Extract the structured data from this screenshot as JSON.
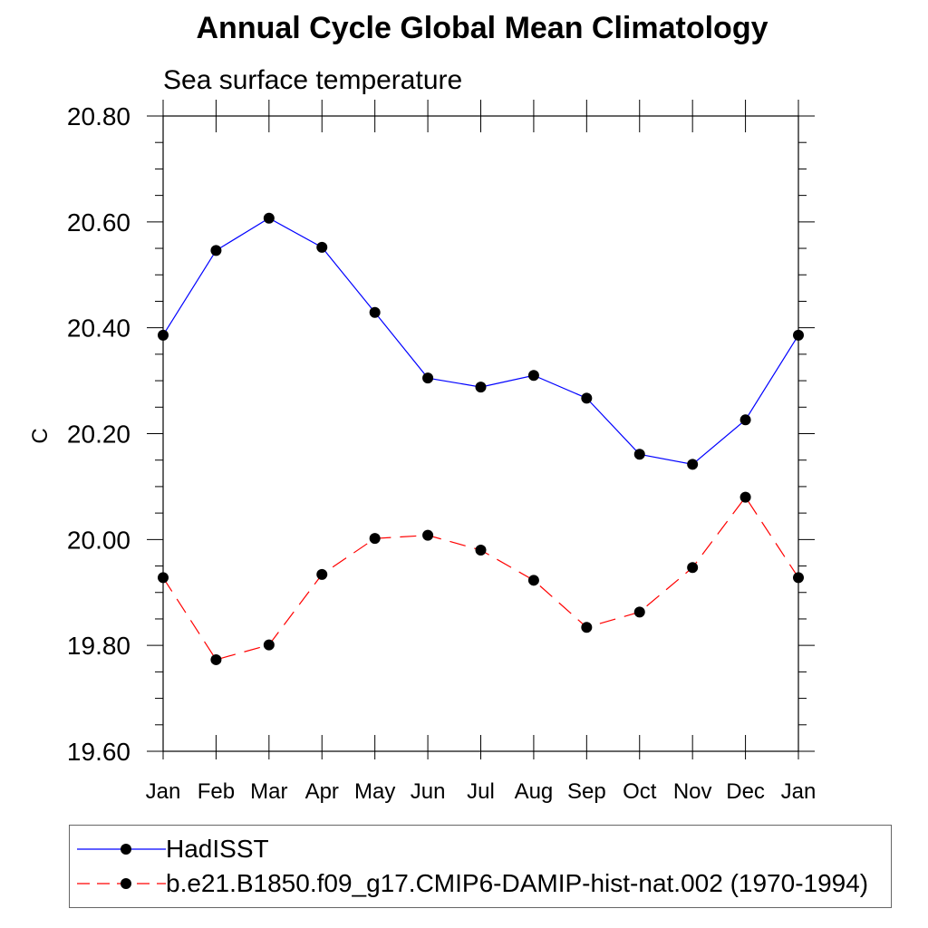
{
  "chart_data": {
    "type": "line",
    "title": "Annual Cycle Global Mean Climatology",
    "subtitle": "Sea surface temperature",
    "ylabel": "C",
    "xlabel": "",
    "categories": [
      "Jan",
      "Feb",
      "Mar",
      "Apr",
      "May",
      "Jun",
      "Jul",
      "Aug",
      "Sep",
      "Oct",
      "Nov",
      "Dec",
      "Jan"
    ],
    "ylim": [
      19.6,
      20.8
    ],
    "yticks": [
      "19.60",
      "19.80",
      "20.00",
      "20.20",
      "20.40",
      "20.60",
      "20.80"
    ],
    "grid": false,
    "legend_position": "bottom",
    "series": [
      {
        "name": "HadISST",
        "color": "#0000ff",
        "line_style": "solid",
        "marker": "filled-circle",
        "values": [
          20.386,
          20.546,
          20.607,
          20.552,
          20.429,
          20.305,
          20.288,
          20.31,
          20.267,
          20.161,
          20.142,
          20.226,
          20.386
        ]
      },
      {
        "name": "b.e21.B1850.f09_g17.CMIP6-DAMIP-hist-nat.002 (1970-1994)",
        "color": "#ff0000",
        "line_style": "dashed",
        "marker": "filled-circle",
        "values": [
          19.928,
          19.773,
          19.801,
          19.934,
          20.002,
          20.008,
          19.98,
          19.923,
          19.834,
          19.863,
          19.947,
          20.08,
          19.928
        ]
      }
    ]
  }
}
